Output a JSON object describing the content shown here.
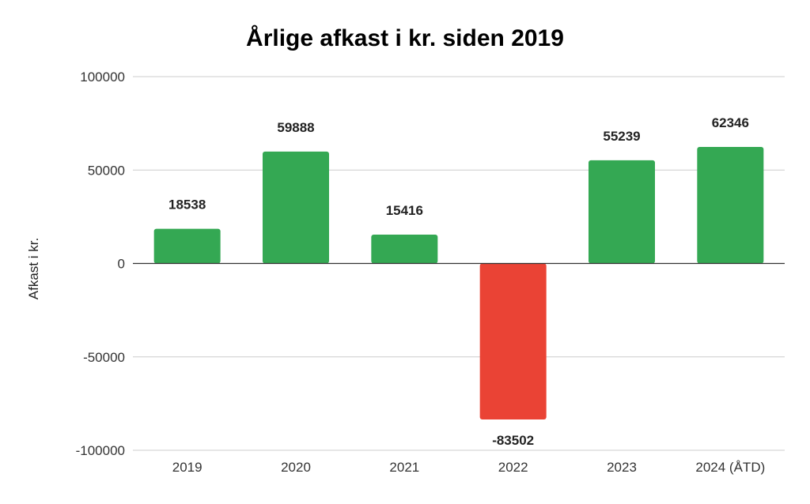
{
  "chart_data": {
    "type": "bar",
    "title": "Årlige afkast i kr. siden 2019",
    "xlabel": "",
    "ylabel": "Afkast i kr.",
    "categories": [
      "2019",
      "2020",
      "2021",
      "2022",
      "2023",
      "2024 (ÅTD)"
    ],
    "values": [
      18538,
      59888,
      15416,
      -83502,
      55239,
      62346
    ],
    "data_labels": [
      "18538",
      "59888",
      "15416",
      "-83502",
      "55239",
      "62346"
    ],
    "ylim": [
      -100000,
      100000
    ],
    "yticks": [
      100000,
      50000,
      0,
      -50000,
      -100000
    ],
    "ytick_labels": [
      "100000",
      "50000",
      "0",
      "-50000",
      "-100000"
    ],
    "grid": true,
    "legend": "none",
    "colors": {
      "positive": "#34a853",
      "negative": "#ea4335",
      "grid": "#cccccc",
      "zero_line": "#333333"
    }
  }
}
